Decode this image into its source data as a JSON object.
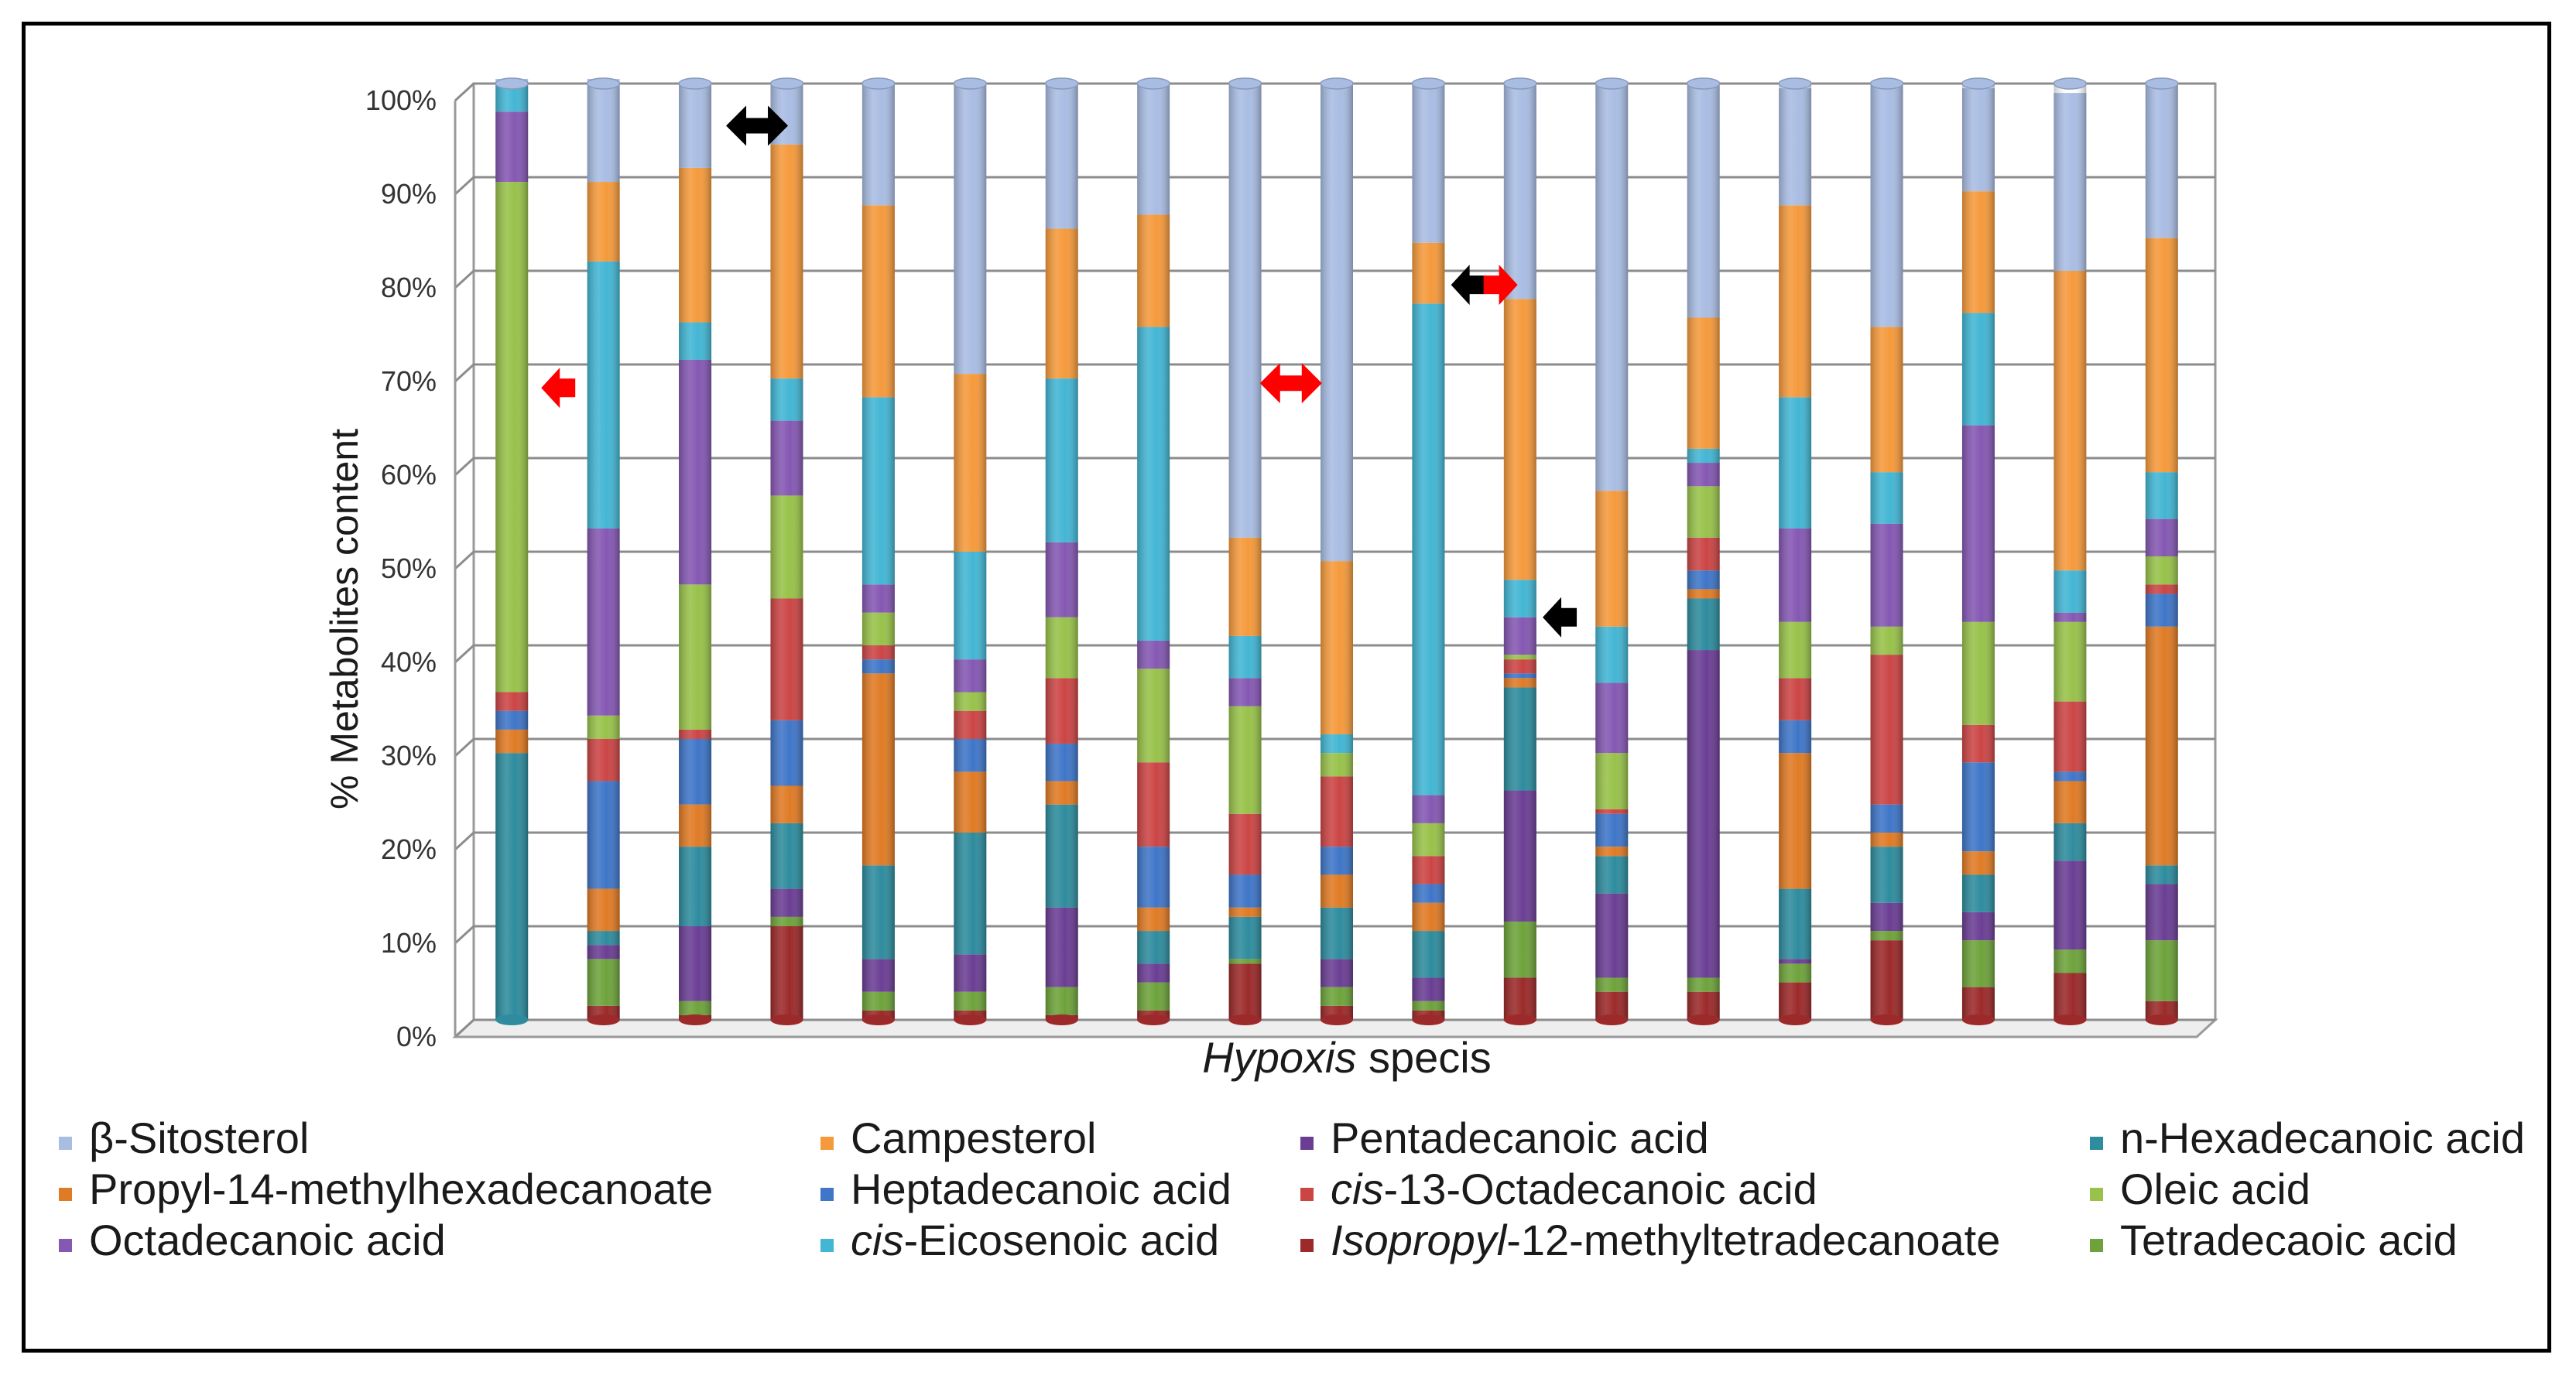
{
  "chart_data": {
    "type": "bar",
    "stacked": "percent",
    "title": "",
    "xlabel": {
      "italic": "Hypoxis",
      "rest": " specis"
    },
    "ylabel": "% Metabolites content",
    "ylim": [
      0,
      100
    ],
    "yticks": [
      "0%",
      "10%",
      "20%",
      "30%",
      "40%",
      "50%",
      "60%",
      "70%",
      "80%",
      "90%",
      "100%"
    ],
    "grid": true,
    "n_bars": 19,
    "stack_order": [
      "Isopropyl-12-methyltetradecanoate",
      "Tetradecaoic acid",
      "Pentadecanoic acid",
      "n-Hexadecanoic acid",
      "Propyl-14-methylhexadecanoate",
      "Heptadecanoic acid",
      "cis-13-Octadecanoic acid",
      "Oleic acid",
      "Octadecanoic acid",
      "cis-Eicosenoic acid",
      "Campesterol",
      "β-Sitosterol"
    ],
    "series_colors": {
      "β-Sitosterol": "#a9bde3",
      "Campesterol": "#f59a3c",
      "Pentadecanoic acid": "#6b3e94",
      "n-Hexadecanoic acid": "#2e8c9e",
      "Propyl-14-methylhexadecanoate": "#e07b25",
      "Heptadecanoic acid": "#3f76c8",
      "cis-13-Octadecanoic acid": "#cc4545",
      "Oleic acid": "#98c24a",
      "Octadecanoic acid": "#8558b3",
      "cis-Eicosenoic acid": "#43b6d4",
      "Isopropyl-12-methyltetradecanoate": "#9c2a2a",
      "Tetradecaoic acid": "#6ea33b"
    },
    "bars": [
      [
        0,
        0,
        0,
        28.5,
        2.5,
        2,
        2,
        54.5,
        7.5,
        3,
        0,
        0.5
      ],
      [
        1.5,
        5,
        1.5,
        1.5,
        4.5,
        11.5,
        4.5,
        2.5,
        20,
        28.5,
        8.5,
        11
      ],
      [
        0.5,
        1.5,
        8,
        8.5,
        4.5,
        7,
        1,
        15.5,
        24,
        4,
        16.5,
        9
      ],
      [
        10,
        1,
        3,
        7,
        4,
        7,
        13,
        11,
        8,
        4.5,
        25,
        6.5
      ],
      [
        1,
        2,
        3.5,
        10,
        20.5,
        1.5,
        1.5,
        3.5,
        3,
        20,
        20.5,
        13
      ],
      [
        1,
        2,
        4,
        13,
        6.5,
        3.5,
        3,
        2,
        3.5,
        11.5,
        19,
        31
      ],
      [
        0.5,
        3,
        8.5,
        11,
        2.5,
        4,
        7,
        6.5,
        8,
        17.5,
        16,
        15.5
      ],
      [
        1,
        3,
        2,
        3.5,
        2.5,
        6.5,
        9,
        10,
        3,
        33.5,
        12,
        14
      ],
      [
        6,
        0.5,
        0,
        4.5,
        1,
        3.5,
        6.5,
        11.5,
        3,
        4.5,
        10.5,
        48.5
      ],
      [
        1.5,
        2,
        3,
        5.5,
        3.5,
        3,
        7.5,
        2.5,
        0,
        2,
        18.5,
        51
      ],
      [
        1,
        1,
        2.5,
        5,
        3,
        2,
        3,
        3.5,
        3,
        52.5,
        6.5,
        17
      ],
      [
        4.5,
        6,
        14,
        11,
        1,
        0.5,
        1.5,
        0.5,
        4,
        4,
        30,
        23
      ],
      [
        3,
        1.5,
        9,
        4,
        1,
        3.5,
        0.5,
        6,
        7.5,
        6,
        14.5,
        43.5
      ],
      [
        3,
        1.5,
        35,
        5.5,
        1,
        2,
        3.5,
        5.5,
        2.5,
        1.5,
        14,
        25
      ],
      [
        4,
        2,
        0.5,
        7.5,
        14.5,
        3.5,
        4.5,
        6,
        10,
        14,
        20.5,
        12.5
      ],
      [
        8.5,
        1,
        3,
        6,
        1.5,
        3,
        16,
        3,
        11,
        5.5,
        15.5,
        26
      ],
      [
        3.5,
        5,
        3,
        4,
        2.5,
        9.5,
        4,
        11,
        21,
        12,
        13,
        11
      ],
      [
        5,
        2.5,
        9.5,
        4,
        4.5,
        1,
        7.5,
        8.5,
        1,
        4.5,
        32,
        19
      ],
      [
        2,
        6.5,
        6,
        2,
        25.5,
        3.5,
        1,
        3,
        4,
        5,
        25,
        16.5
      ]
    ],
    "annotations": [
      {
        "bar": 0,
        "value": 67.5,
        "color": "#ff0000",
        "shape": "left-arrow"
      },
      {
        "bar": 2,
        "value": 95.5,
        "color": "#000000",
        "shape": "double-arrow"
      },
      {
        "between_bars": [
          8,
          9
        ],
        "value": 68,
        "color": "#ff0000",
        "shape": "double-arrow"
      },
      {
        "between_bars": [
          10,
          11
        ],
        "value": 78.5,
        "color": "#000000",
        "shape": "left-arrow"
      },
      {
        "between_bars": [
          10,
          11
        ],
        "value": 78.5,
        "color": "#ff0000",
        "shape": "right-arrow"
      },
      {
        "between_bars": [
          11,
          12
        ],
        "value": 43,
        "color": "#000000",
        "shape": "left-arrow"
      }
    ]
  },
  "legend": [
    {
      "name": "β-Sitosterol",
      "color": "#a9bde3"
    },
    {
      "name": "Campesterol",
      "color": "#f59a3c"
    },
    {
      "name": "Pentadecanoic acid",
      "color": "#6b3e94"
    },
    {
      "name": "n-Hexadecanoic acid",
      "color": "#2e8c9e"
    },
    {
      "name": "Propyl-14-methylhexadecanoate",
      "color": "#e07b25"
    },
    {
      "name": "Heptadecanoic acid",
      "color": "#3f76c8"
    },
    {
      "italic": "cis",
      "rest": "-13-Octadecanoic acid",
      "color": "#cc4545"
    },
    {
      "name": "Oleic acid",
      "color": "#98c24a"
    },
    {
      "name": "Octadecanoic acid",
      "color": "#8558b3"
    },
    {
      "italic": "cis",
      "rest": "-Eicosenoic acid",
      "color": "#43b6d4"
    },
    {
      "italic": "Isopropyl",
      "rest": "-12-methyltetradecanoate",
      "color": "#9c2a2a"
    },
    {
      "name": "Tetradecaoic acid",
      "color": "#6ea33b"
    }
  ]
}
